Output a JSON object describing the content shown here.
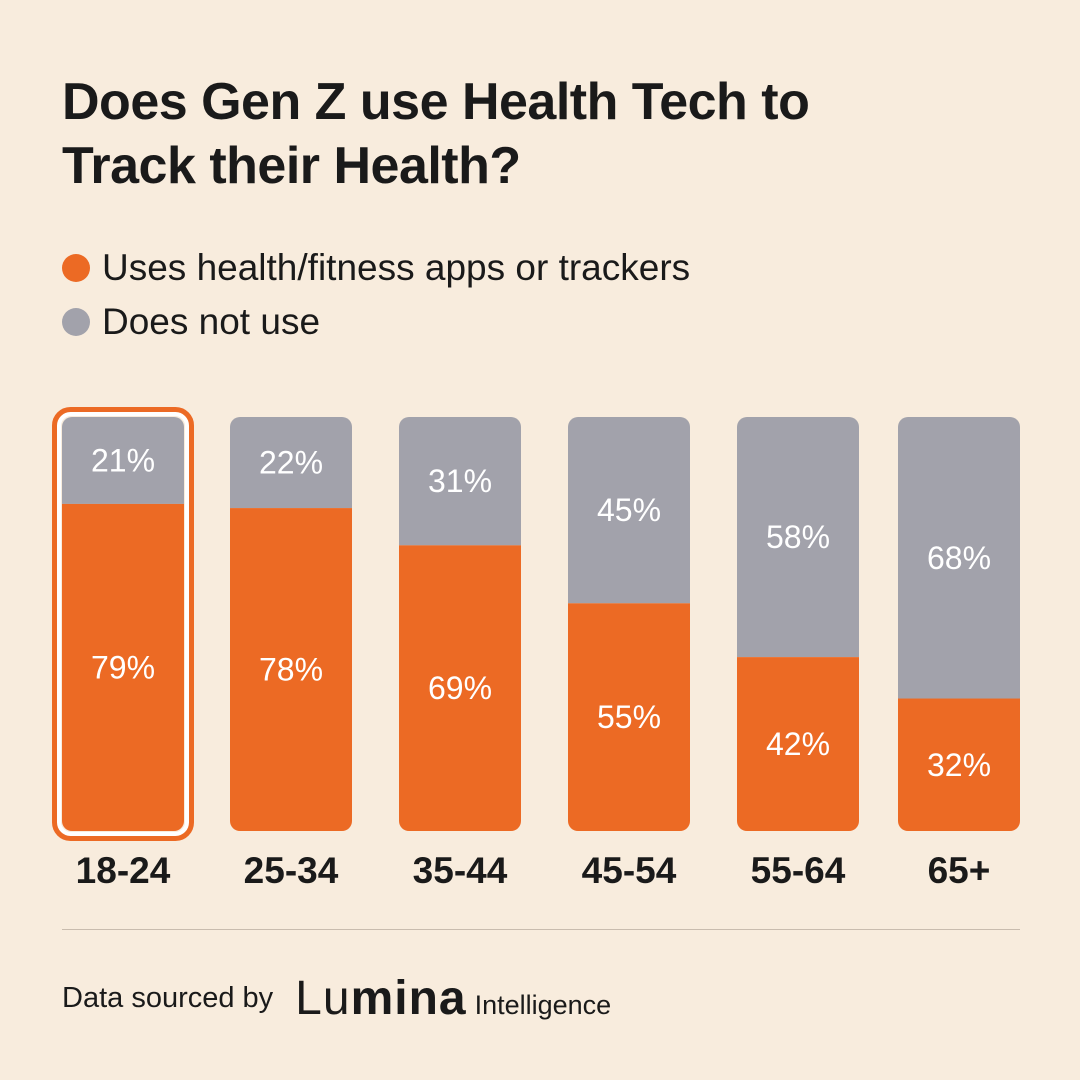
{
  "header": {
    "title_line1": "Does Gen Z use Health Tech to",
    "title_line2": "Track their Health?"
  },
  "legend": {
    "items": [
      {
        "label": "Uses health/fitness apps or trackers",
        "color": "#ec6a24"
      },
      {
        "label": "Does not use",
        "color": "#a2a2ab"
      }
    ]
  },
  "chart_data": {
    "type": "bar",
    "stacked": true,
    "title": "Does Gen Z use Health Tech to Track their Health?",
    "categories": [
      "18-24",
      "25-34",
      "35-44",
      "45-54",
      "55-64",
      "65+"
    ],
    "series": [
      {
        "name": "Uses health/fitness apps or trackers",
        "color": "#ec6a24",
        "values": [
          79,
          78,
          69,
          55,
          42,
          32
        ]
      },
      {
        "name": "Does not use",
        "color": "#a2a2ab",
        "values": [
          21,
          22,
          31,
          45,
          58,
          68
        ]
      }
    ],
    "value_suffix": "%",
    "ylim": [
      0,
      100
    ],
    "highlighted_category": "18-24",
    "xlabel": "",
    "ylabel": ""
  },
  "footer": {
    "source_label": "Data sourced by",
    "logo_thin": "Lu",
    "logo_bold": "mina",
    "logo_sub": "Intelligence"
  }
}
